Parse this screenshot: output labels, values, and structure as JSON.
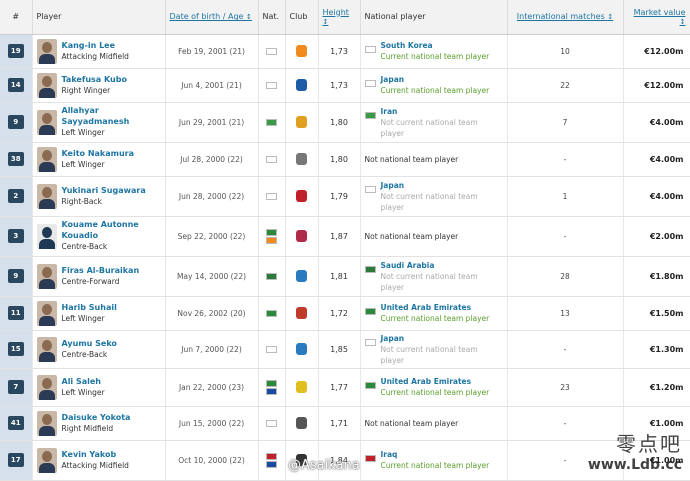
{
  "headers": {
    "num": "#",
    "player": "Player",
    "dob": "Date of birth / Age",
    "nat": "Nat.",
    "club": "Club",
    "height": "Height",
    "national": "National player",
    "intl": "International matches",
    "value": "Market value"
  },
  "sort_arrow": "↕",
  "players": [
    {
      "num": "19",
      "name": "Kang-in Lee",
      "pos": "Attacking Midfield",
      "dob": "Feb 19, 2001 (21)",
      "flags": [
        "#ffffff"
      ],
      "club_color": "#f08a1c",
      "height": "1,73",
      "nt_name": "South Korea",
      "nt_status": "Current national team player",
      "nt_status_type": "current",
      "nt_flag": "#ffffff",
      "intl": "10",
      "value": "€12.00m",
      "silhouette": false
    },
    {
      "num": "14",
      "name": "Takefusa Kubo",
      "pos": "Right Winger",
      "dob": "Jun 4, 2001 (21)",
      "flags": [
        "#ffffff"
      ],
      "club_color": "#1e5aa8",
      "height": "1,73",
      "nt_name": "Japan",
      "nt_status": "Current national team player",
      "nt_status_type": "current",
      "nt_flag": "#ffffff",
      "intl": "22",
      "value": "€12.00m",
      "silhouette": false
    },
    {
      "num": "9",
      "name": "Allahyar Sayyadmanesh",
      "pos": "Left Winger",
      "dob": "Jun 29, 2001 (21)",
      "flags": [
        "#3a9a4a"
      ],
      "club_color": "#e0a020",
      "height": "1,80",
      "nt_name": "Iran",
      "nt_status": "Not current national team player",
      "nt_status_type": "notcurrent",
      "nt_flag": "#3a9a4a",
      "intl": "7",
      "value": "€4.00m",
      "silhouette": false
    },
    {
      "num": "38",
      "name": "Keito Nakamura",
      "pos": "Left Winger",
      "dob": "Jul 28, 2000 (22)",
      "flags": [
        "#ffffff"
      ],
      "club_color": "#777777",
      "height": "1,80",
      "nt_name": "",
      "nt_status": "Not national team player",
      "nt_status_type": "plain",
      "nt_flag": "",
      "intl": "-",
      "value": "€4.00m",
      "silhouette": false
    },
    {
      "num": "2",
      "name": "Yukinari Sugawara",
      "pos": "Right-Back",
      "dob": "Jun 28, 2000 (22)",
      "flags": [
        "#ffffff"
      ],
      "club_color": "#c0202a",
      "height": "1,79",
      "nt_name": "Japan",
      "nt_status": "Not current national team player",
      "nt_status_type": "notcurrent",
      "nt_flag": "#ffffff",
      "intl": "1",
      "value": "€4.00m",
      "silhouette": false
    },
    {
      "num": "3",
      "name": "Kouame Autonne Kouadio",
      "pos": "Centre-Back",
      "dob": "Sep 22, 2000 (22)",
      "flags": [
        "#2a8a3a",
        "#f08a1c"
      ],
      "club_color": "#b02a4a",
      "height": "1,87",
      "nt_name": "",
      "nt_status": "Not national team player",
      "nt_status_type": "plain",
      "nt_flag": "",
      "intl": "-",
      "value": "€2.00m",
      "silhouette": true
    },
    {
      "num": "9",
      "name": "Firas Al-Buraikan",
      "pos": "Centre-Forward",
      "dob": "May 14, 2000 (22)",
      "flags": [
        "#2a7a3a"
      ],
      "club_color": "#2a7ac0",
      "height": "1,81",
      "nt_name": "Saudi Arabia",
      "nt_status": "Not current national team player",
      "nt_status_type": "notcurrent",
      "nt_flag": "#2a7a3a",
      "intl": "28",
      "value": "€1.80m",
      "silhouette": false
    },
    {
      "num": "11",
      "name": "Harib Suhail",
      "pos": "Left Winger",
      "dob": "Nov 26, 2002 (20)",
      "flags": [
        "#2a8a3a"
      ],
      "club_color": "#c03a2a",
      "height": "1,72",
      "nt_name": "United Arab Emirates",
      "nt_status": "Current national team player",
      "nt_status_type": "current",
      "nt_flag": "#2a8a3a",
      "intl": "13",
      "value": "€1.50m",
      "silhouette": false
    },
    {
      "num": "15",
      "name": "Ayumu Seko",
      "pos": "Centre-Back",
      "dob": "Jun 7, 2000 (22)",
      "flags": [
        "#ffffff"
      ],
      "club_color": "#2a7ac0",
      "height": "1,85",
      "nt_name": "Japan",
      "nt_status": "Not current national team player",
      "nt_status_type": "notcurrent",
      "nt_flag": "#ffffff",
      "intl": "-",
      "value": "€1.30m",
      "silhouette": false
    },
    {
      "num": "7",
      "name": "Ali Saleh",
      "pos": "Left Winger",
      "dob": "Jan 22, 2000 (23)",
      "flags": [
        "#2a8a3a",
        "#1a4aa0"
      ],
      "club_color": "#e0c020",
      "height": "1,77",
      "nt_name": "United Arab Emirates",
      "nt_status": "Current national team player",
      "nt_status_type": "current",
      "nt_flag": "#2a8a3a",
      "intl": "23",
      "value": "€1.20m",
      "silhouette": false
    },
    {
      "num": "41",
      "name": "Daisuke Yokota",
      "pos": "Right Midfield",
      "dob": "Jun 15, 2000 (22)",
      "flags": [
        "#ffffff"
      ],
      "club_color": "#555555",
      "height": "1,71",
      "nt_name": "",
      "nt_status": "Not national team player",
      "nt_status_type": "plain",
      "nt_flag": "",
      "intl": "-",
      "value": "€1.00m",
      "silhouette": false
    },
    {
      "num": "17",
      "name": "Kevin Yakob",
      "pos": "Attacking Midfield",
      "dob": "Oct 10, 2000 (22)",
      "flags": [
        "#c0202a",
        "#1a4aa0"
      ],
      "club_color": "#333333",
      "height": "1,84",
      "nt_name": "Iraq",
      "nt_status": "Current national team player",
      "nt_status_type": "current",
      "nt_flag": "#c0202a",
      "intl": "-",
      "value": "€1.00m",
      "silhouette": false
    }
  ],
  "watermark": {
    "cn": "零点吧",
    "url": "www.Ldb.cc",
    "weibo": "@Asaikana"
  }
}
